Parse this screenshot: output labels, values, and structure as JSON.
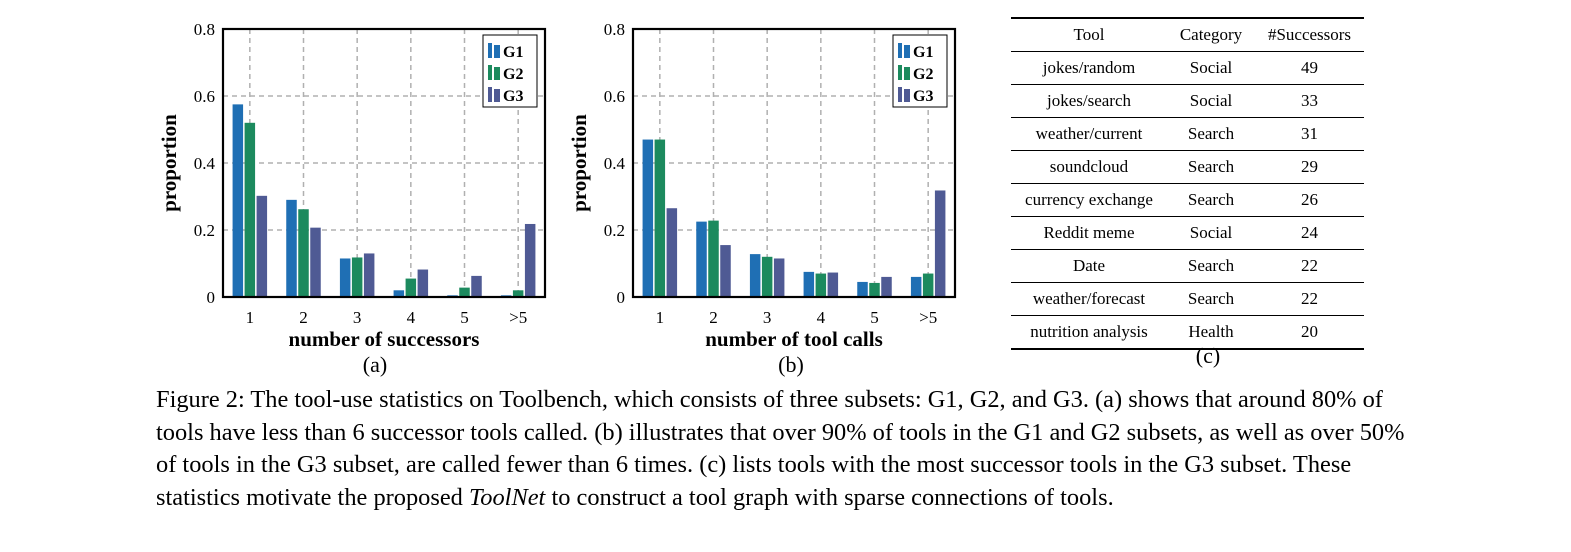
{
  "colors": {
    "G1": "#1f6fb4",
    "G2": "#1c8a5e",
    "G3": "#4f5a94",
    "grid": "#b0b0b0"
  },
  "chart_data": [
    {
      "type": "bar",
      "categories": [
        "1",
        "2",
        "3",
        "4",
        "5",
        ">5"
      ],
      "series": [
        {
          "name": "G1",
          "values": [
            0.575,
            0.29,
            0.115,
            0.02,
            0.005,
            0.005
          ]
        },
        {
          "name": "G2",
          "values": [
            0.52,
            0.262,
            0.118,
            0.055,
            0.028,
            0.02
          ]
        },
        {
          "name": "G3",
          "values": [
            0.302,
            0.207,
            0.13,
            0.082,
            0.063,
            0.218
          ]
        }
      ],
      "xlabel": "number of successors",
      "ylabel": "proportion",
      "ylim": [
        0,
        0.8
      ],
      "yticks": [
        "0",
        "0.2",
        "0.4",
        "0.6",
        "0.8"
      ],
      "grid": true,
      "legend": "top-right"
    },
    {
      "type": "bar",
      "categories": [
        "1",
        "2",
        "3",
        "4",
        "5",
        ">5"
      ],
      "series": [
        {
          "name": "G1",
          "values": [
            0.47,
            0.225,
            0.128,
            0.075,
            0.045,
            0.06
          ]
        },
        {
          "name": "G2",
          "values": [
            0.47,
            0.228,
            0.12,
            0.07,
            0.042,
            0.07
          ]
        },
        {
          "name": "G3",
          "values": [
            0.265,
            0.155,
            0.115,
            0.073,
            0.06,
            0.318
          ]
        }
      ],
      "xlabel": "number of tool calls",
      "ylabel": "proportion",
      "ylim": [
        0,
        0.8
      ],
      "yticks": [
        "0",
        "0.2",
        "0.4",
        "0.6",
        "0.8"
      ],
      "grid": true,
      "legend": "top-right"
    }
  ],
  "captions": {
    "a": "(a)",
    "b": "(b)",
    "c": "(c)"
  },
  "table": {
    "headers": [
      "Tool",
      "Category",
      "#Successors"
    ],
    "rows": [
      [
        "jokes/random",
        "Social",
        "49"
      ],
      [
        "jokes/search",
        "Social",
        "33"
      ],
      [
        "weather/current",
        "Search",
        "31"
      ],
      [
        "soundcloud",
        "Search",
        "29"
      ],
      [
        "currency exchange",
        "Search",
        "26"
      ],
      [
        "Reddit meme",
        "Social",
        "24"
      ],
      [
        "Date",
        "Search",
        "22"
      ],
      [
        "weather/forecast",
        "Search",
        "22"
      ],
      [
        "nutrition analysis",
        "Health",
        "20"
      ]
    ]
  },
  "figure_caption": {
    "text_before": "Figure 2: The tool-use statistics on Toolbench, which consists of three subsets: G1, G2, and G3. (a) shows that around 80% of tools have less than 6 successor tools called. (b) illustrates that over 90% of tools in the G1 and G2 subsets, as well as over 50% of tools in the G3 subset, are called fewer than 6 times. (c) lists tools with the most successor tools in the G3 subset. These statistics motivate the proposed ",
    "emphasis": "ToolNet",
    "text_after": " to construct a tool graph with sparse connections of tools."
  }
}
